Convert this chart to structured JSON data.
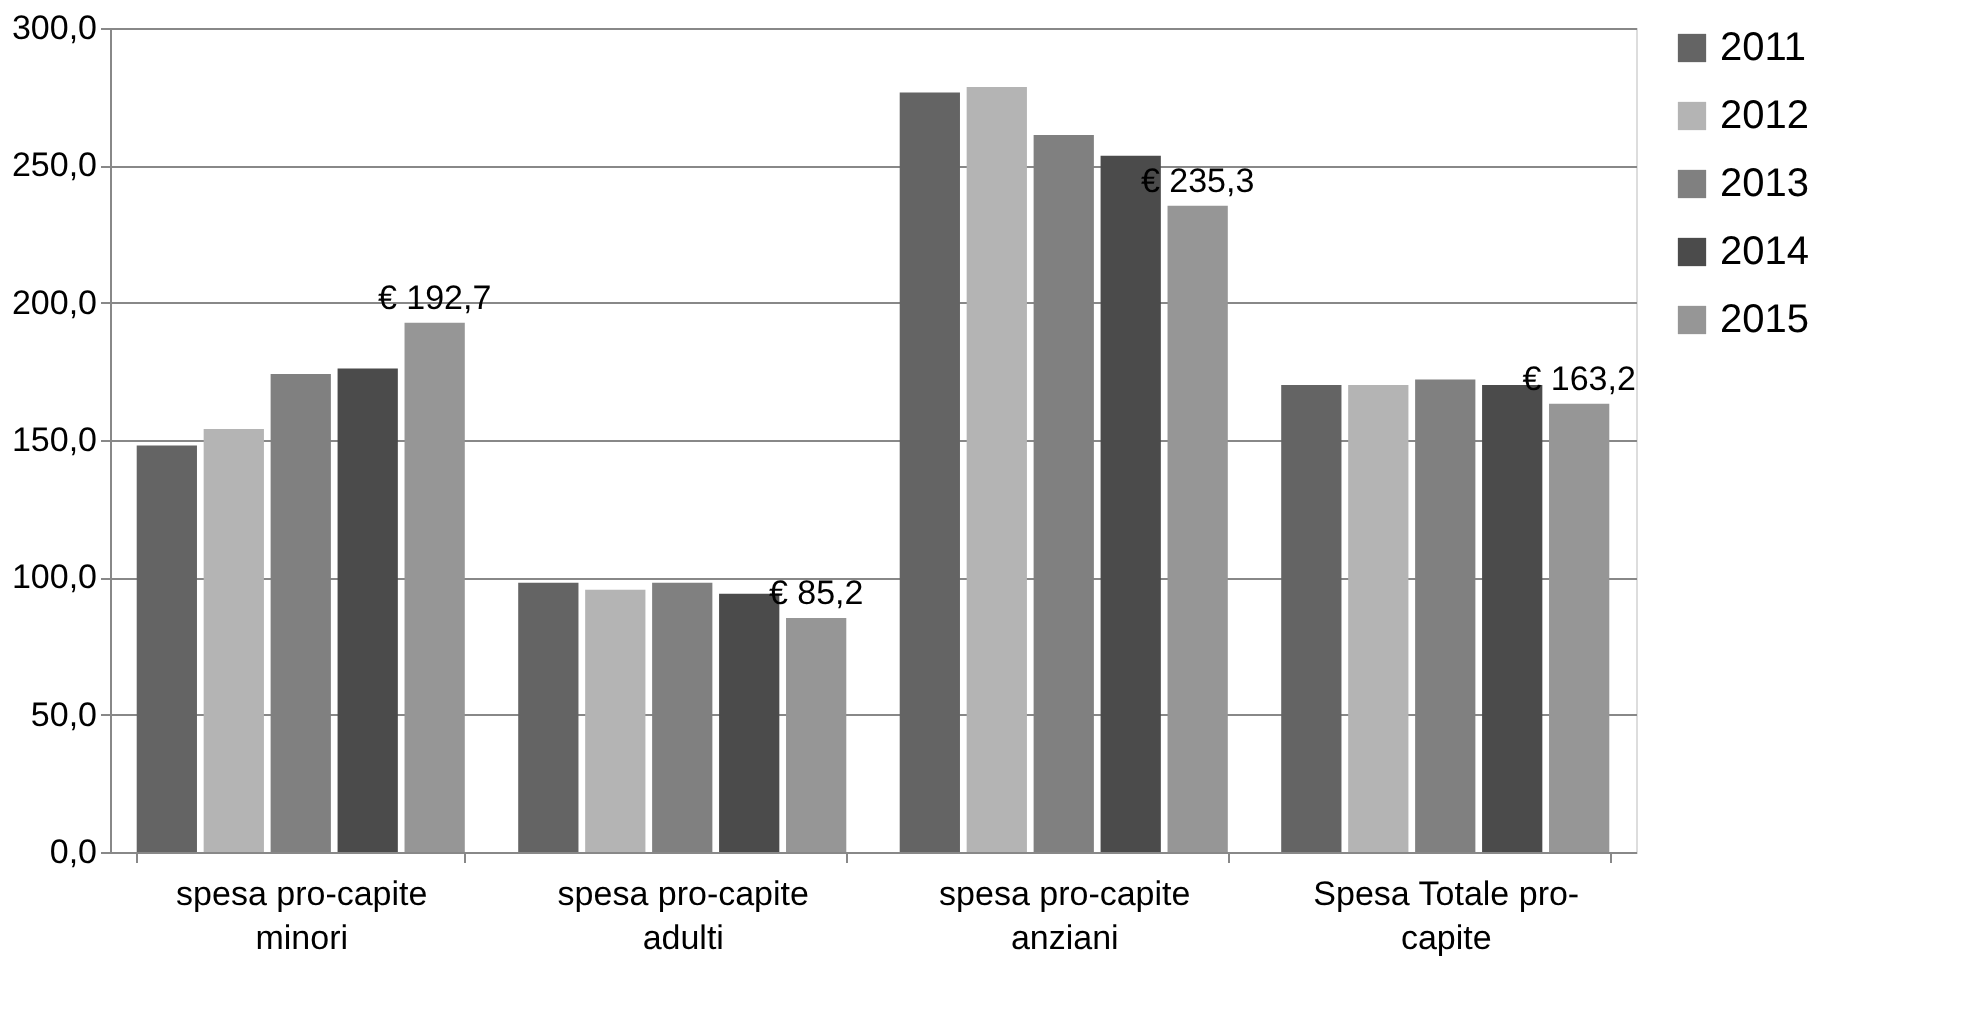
{
  "chart_data": {
    "type": "bar",
    "categories": [
      "spesa pro-capite\nminori",
      "spesa pro-capite\nadulti",
      "spesa pro-capite\nanziani",
      "Spesa Totale pro-\ncapite"
    ],
    "series": [
      {
        "name": "2011",
        "color": "#646464",
        "values": [
          148,
          98,
          276.5,
          170
        ]
      },
      {
        "name": "2012",
        "color": "#b4b4b4",
        "values": [
          154,
          95.5,
          278.5,
          170
        ]
      },
      {
        "name": "2013",
        "color": "#808080",
        "values": [
          174,
          98,
          261,
          172
        ]
      },
      {
        "name": "2014",
        "color": "#4b4b4b",
        "values": [
          176,
          94,
          253.5,
          170
        ]
      },
      {
        "name": "2015",
        "color": "#969696",
        "values": [
          192.7,
          85.2,
          235.3,
          163.2
        ],
        "value_labels": [
          "€ 192,7",
          "€ 85,2",
          "€ 235,3",
          "€ 163,2"
        ]
      }
    ],
    "ylim": [
      0,
      300
    ],
    "yticks": [
      {
        "value": 0,
        "label": "0,0"
      },
      {
        "value": 50,
        "label": "50,0"
      },
      {
        "value": 100,
        "label": "100,0"
      },
      {
        "value": 150,
        "label": "150,0"
      },
      {
        "value": 200,
        "label": "200,0"
      },
      {
        "value": 250,
        "label": "250,0"
      },
      {
        "value": 300,
        "label": "300,0"
      }
    ],
    "grid": "y",
    "legend": "right"
  }
}
